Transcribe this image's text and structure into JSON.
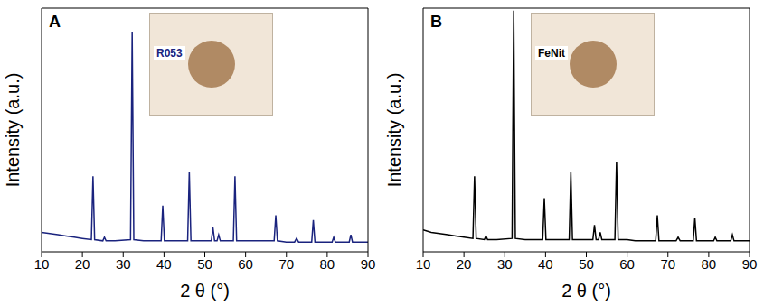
{
  "chart_data": [
    {
      "type": "line",
      "panel": "A",
      "inset_label": "R053",
      "x_label": "2 θ (°)",
      "y_label": "Intensity (a.u.)",
      "color": "#1a237e",
      "marker": "none",
      "line_style": "solid",
      "grid": false,
      "tick_labels": "x",
      "xlim": [
        10,
        90
      ],
      "xticks": [
        10,
        20,
        30,
        40,
        50,
        60,
        70,
        80,
        90
      ],
      "ylim": [
        0,
        100
      ],
      "x": [
        10,
        12,
        14,
        16,
        18,
        20,
        22.2,
        22.6,
        23,
        25,
        25.4,
        25.8,
        28,
        31.8,
        32.2,
        32.6,
        35,
        39.3,
        39.7,
        40.1,
        43,
        45.8,
        46.2,
        46.6,
        49,
        51.6,
        52,
        52.4,
        53,
        53.4,
        53.8,
        56,
        57,
        57.4,
        57.8,
        60,
        62,
        64,
        67,
        67.4,
        67.8,
        70,
        72,
        72.5,
        73,
        76.2,
        76.6,
        77,
        79,
        81.2,
        81.6,
        82,
        85.4,
        85.8,
        86.2,
        88,
        90
      ],
      "values": [
        8,
        7.5,
        7,
        6.5,
        6,
        5.5,
        5,
        31,
        5,
        4.5,
        6,
        4.5,
        4.5,
        5,
        90,
        5,
        4.5,
        4.5,
        19,
        4.5,
        4.5,
        4.5,
        33,
        4.5,
        4.5,
        4.5,
        10,
        4.5,
        4.5,
        7,
        4.5,
        4.5,
        4.5,
        31,
        4.5,
        4.5,
        4.5,
        4.5,
        4.5,
        15,
        4.5,
        4,
        4,
        5.5,
        4,
        4,
        13,
        4,
        4,
        4,
        6,
        4,
        4,
        7,
        4,
        4,
        4
      ]
    },
    {
      "type": "line",
      "panel": "B",
      "inset_label": "FeNit",
      "x_label": "2 θ (°)",
      "y_label": "Intensity (a.u.)",
      "color": "#000000",
      "marker": "none",
      "line_style": "solid",
      "grid": false,
      "tick_labels": "x",
      "xlim": [
        10,
        90
      ],
      "xticks": [
        10,
        20,
        30,
        40,
        50,
        60,
        70,
        80,
        90
      ],
      "ylim": [
        0,
        100
      ],
      "x": [
        10,
        12,
        14,
        16,
        18,
        20,
        22.2,
        22.6,
        23,
        25,
        25.4,
        25.8,
        28,
        31.8,
        32.2,
        32.6,
        35,
        39.3,
        39.7,
        40.1,
        43,
        45.8,
        46.2,
        46.6,
        49,
        51.6,
        52,
        52.4,
        53,
        53.4,
        53.8,
        56,
        57,
        57.4,
        57.8,
        60,
        62,
        64,
        67,
        67.4,
        67.8,
        70,
        72,
        72.5,
        73,
        76.2,
        76.6,
        77,
        79,
        81.2,
        81.6,
        82,
        85.4,
        85.8,
        86.2,
        88,
        90
      ],
      "values": [
        9,
        8,
        7.5,
        7,
        6.5,
        6,
        5.5,
        31,
        5.5,
        5,
        6.5,
        5,
        5,
        5.5,
        99,
        5.5,
        5,
        5,
        22,
        5,
        5,
        5,
        33,
        5,
        5,
        5,
        11,
        5,
        5,
        8,
        5,
        5,
        5,
        37,
        5,
        5,
        4.5,
        4.5,
        4.5,
        15,
        4.5,
        4.5,
        4.5,
        6,
        4.5,
        4.5,
        14,
        4.5,
        4.5,
        4.5,
        6,
        4.5,
        4.5,
        7,
        4.5,
        4.5,
        4.5
      ]
    }
  ]
}
